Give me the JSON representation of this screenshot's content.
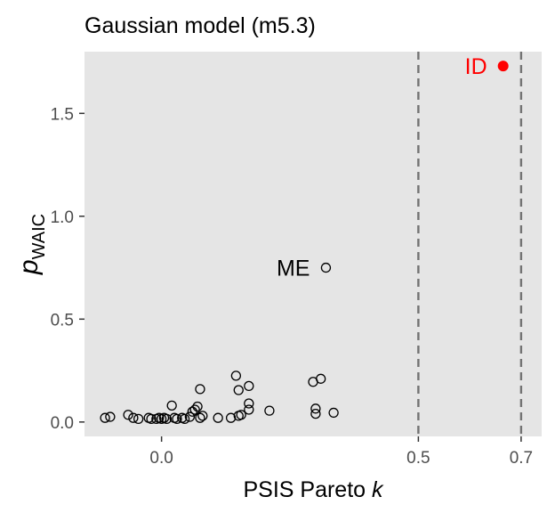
{
  "chart_data": {
    "type": "scatter",
    "title": "Gaussian model (m5.3)",
    "xlabel": "PSIS Pareto k",
    "xlabel_main": "PSIS Pareto ",
    "xlabel_italic": "k",
    "ylabel_main": "p",
    "ylabel_sub": "WAIC",
    "xlim": [
      -0.15,
      0.74
    ],
    "ylim": [
      -0.07,
      1.8
    ],
    "x_ticks": [
      {
        "value": 0.0,
        "label": "0.0"
      },
      {
        "value": 0.5,
        "label": "0.5"
      },
      {
        "value": 0.7,
        "label": "0.7"
      }
    ],
    "y_ticks": [
      {
        "value": 0.0,
        "label": "0.0"
      },
      {
        "value": 0.5,
        "label": "0.5"
      },
      {
        "value": 1.0,
        "label": "1.0"
      },
      {
        "value": 1.5,
        "label": "1.5"
      }
    ],
    "vlines": [
      0.5,
      0.7
    ],
    "grid": false,
    "series": [
      {
        "kind": "open",
        "points": [
          {
            "x": -0.11,
            "y": 0.02
          },
          {
            "x": -0.1,
            "y": 0.025
          },
          {
            "x": -0.065,
            "y": 0.035
          },
          {
            "x": -0.055,
            "y": 0.02
          },
          {
            "x": -0.045,
            "y": 0.015
          },
          {
            "x": -0.025,
            "y": 0.02
          },
          {
            "x": -0.02,
            "y": 0.015
          },
          {
            "x": -0.01,
            "y": 0.015
          },
          {
            "x": -0.005,
            "y": 0.02
          },
          {
            "x": 0.0,
            "y": 0.015
          },
          {
            "x": 0.005,
            "y": 0.02
          },
          {
            "x": 0.01,
            "y": 0.015
          },
          {
            "x": 0.02,
            "y": 0.08
          },
          {
            "x": 0.025,
            "y": 0.02
          },
          {
            "x": 0.03,
            "y": 0.015
          },
          {
            "x": 0.04,
            "y": 0.02
          },
          {
            "x": 0.045,
            "y": 0.015
          },
          {
            "x": 0.055,
            "y": 0.025
          },
          {
            "x": 0.06,
            "y": 0.05
          },
          {
            "x": 0.065,
            "y": 0.06
          },
          {
            "x": 0.07,
            "y": 0.075
          },
          {
            "x": 0.075,
            "y": 0.02
          },
          {
            "x": 0.08,
            "y": 0.03
          },
          {
            "x": 0.075,
            "y": 0.16
          },
          {
            "x": 0.11,
            "y": 0.02
          },
          {
            "x": 0.135,
            "y": 0.02
          },
          {
            "x": 0.145,
            "y": 0.225
          },
          {
            "x": 0.15,
            "y": 0.03
          },
          {
            "x": 0.155,
            "y": 0.035
          },
          {
            "x": 0.15,
            "y": 0.155
          },
          {
            "x": 0.17,
            "y": 0.175
          },
          {
            "x": 0.17,
            "y": 0.09
          },
          {
            "x": 0.17,
            "y": 0.06
          },
          {
            "x": 0.21,
            "y": 0.055
          },
          {
            "x": 0.295,
            "y": 0.195
          },
          {
            "x": 0.31,
            "y": 0.21
          },
          {
            "x": 0.3,
            "y": 0.065
          },
          {
            "x": 0.3,
            "y": 0.04
          },
          {
            "x": 0.335,
            "y": 0.045
          },
          {
            "x": 0.32,
            "y": 0.75
          }
        ]
      },
      {
        "kind": "filled",
        "color": "#ff0000",
        "points": [
          {
            "x": 0.665,
            "y": 1.73
          }
        ]
      }
    ],
    "annotations": [
      {
        "text": "ME",
        "x": 0.32,
        "y": 0.75,
        "color": "#000000"
      },
      {
        "text": "ID",
        "x": 0.665,
        "y": 1.73,
        "color": "#ff0000"
      }
    ]
  }
}
